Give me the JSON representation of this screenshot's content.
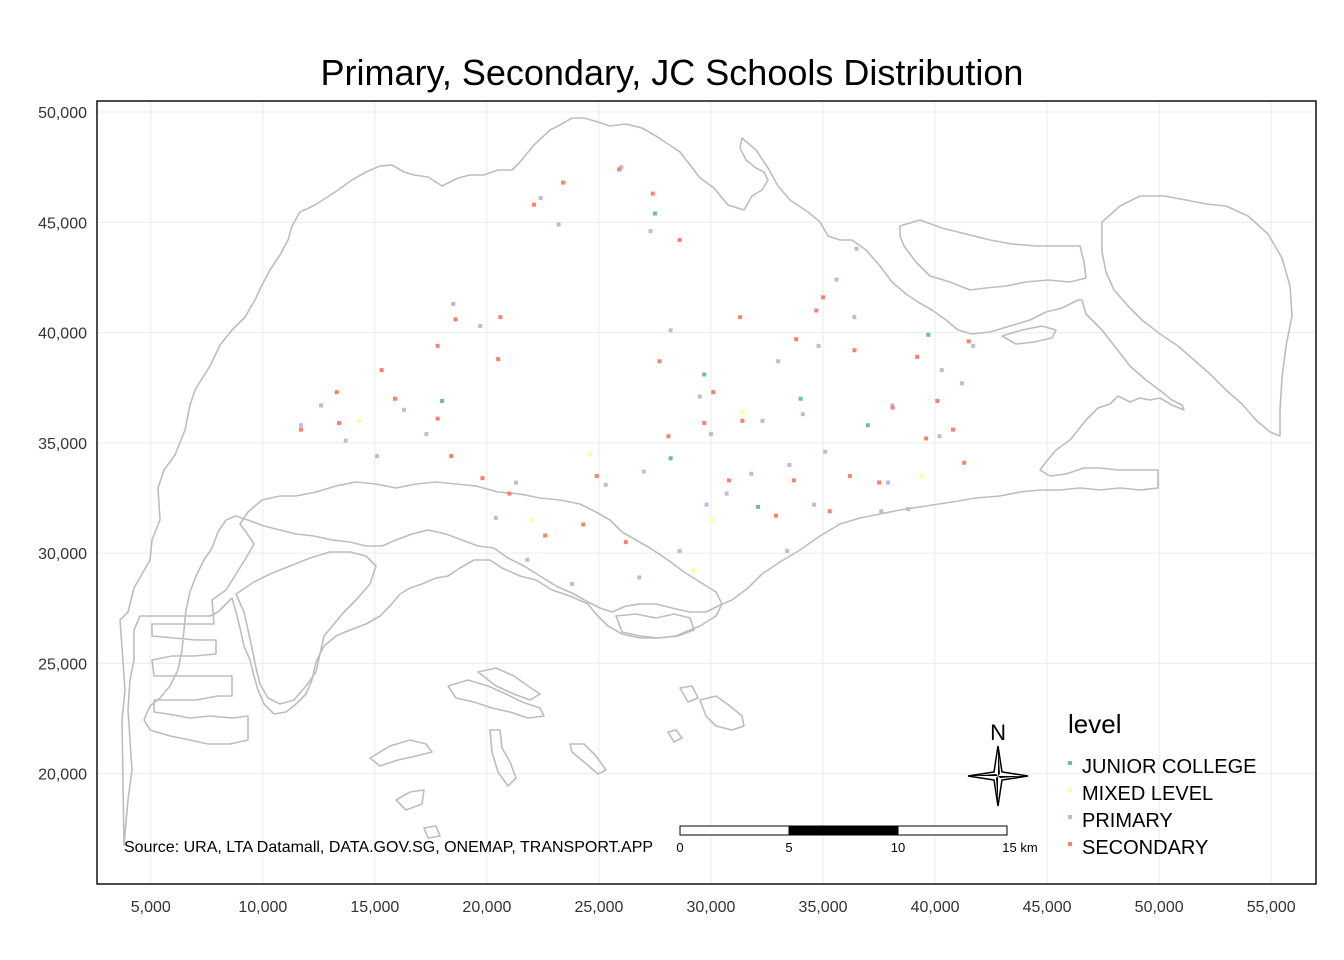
{
  "title": "Primary, Secondary, JC Schools Distribution",
  "source_note": "Source: URA, LTA Datamall, DATA.GOV.SG, ONEMAP, TRANSPORT.APP",
  "north_arrow_label": "N",
  "scale_bar": {
    "labels": [
      "0",
      "5",
      "10",
      "15 km"
    ]
  },
  "legend": {
    "title": "level",
    "items": [
      {
        "label": "JUNIOR COLLEGE",
        "color": "#66c2a5"
      },
      {
        "label": "MIXED LEVEL",
        "color": "#ffff99"
      },
      {
        "label": "PRIMARY",
        "color": "#bebada"
      },
      {
        "label": "SECONDARY",
        "color": "#fb8072"
      }
    ]
  },
  "colors": {
    "outline": "#bdbdbd",
    "grid": "#ebebeb",
    "frame": "#000000"
  },
  "chart_data": {
    "type": "scatter",
    "title": "Primary, Secondary, JC Schools Distribution",
    "xlim": [
      2600,
      57000
    ],
    "ylim": [
      15000,
      50500
    ],
    "x_ticks": [
      5000,
      10000,
      15000,
      20000,
      25000,
      30000,
      35000,
      40000,
      45000,
      50000,
      55000
    ],
    "x_tick_labels": [
      "5,000",
      "10,000",
      "15,000",
      "20,000",
      "25,000",
      "30,000",
      "35,000",
      "40,000",
      "45,000",
      "50,000",
      "55,000"
    ],
    "y_ticks": [
      20000,
      25000,
      30000,
      35000,
      40000,
      45000,
      50000
    ],
    "y_tick_labels": [
      "20,000",
      "25,000",
      "30,000",
      "35,000",
      "40,000",
      "45,000",
      "50,000"
    ],
    "grid": true,
    "legend_position": "bottom-right",
    "series": [
      {
        "name": "JUNIOR COLLEGE",
        "x": [
          18000,
          27500,
          28200,
          29700,
          32100,
          34000,
          37000,
          39700
        ],
        "y": [
          36900,
          45400,
          34300,
          38100,
          32100,
          37000,
          35800,
          39900
        ]
      },
      {
        "name": "MIXED LEVEL",
        "x": [
          14300,
          22000,
          24600,
          29200,
          30000,
          31400,
          39400
        ],
        "y": [
          36000,
          31500,
          34500,
          29200,
          31500,
          36400,
          33500
        ]
      },
      {
        "name": "PRIMARY",
        "x": [
          11700,
          12600,
          13700,
          15100,
          16300,
          17300,
          18500,
          19700,
          21300,
          23200,
          22400,
          26000,
          27300,
          28200,
          29500,
          30000,
          31800,
          33000,
          34100,
          35600,
          36400,
          33500,
          34600,
          37600,
          40300,
          41700,
          25300,
          26800,
          28600,
          30700,
          32300,
          34800,
          36500,
          38100,
          38800,
          40200,
          41200,
          20400,
          21800,
          23800,
          27000,
          29800,
          33400,
          35100,
          37900
        ],
        "y": [
          35800,
          36700,
          35100,
          34400,
          36500,
          35400,
          41300,
          40300,
          33200,
          44900,
          46100,
          47500,
          44600,
          40100,
          37100,
          35400,
          33600,
          38700,
          36300,
          42400,
          40700,
          34000,
          32200,
          31900,
          38300,
          39400,
          33100,
          28900,
          30100,
          32700,
          36000,
          39400,
          43800,
          36700,
          32000,
          35300,
          37700,
          31600,
          29700,
          28600,
          33700,
          32200,
          30100,
          34600,
          33200
        ]
      },
      {
        "name": "SECONDARY",
        "x": [
          11700,
          13300,
          15900,
          17800,
          18600,
          20600,
          22100,
          23400,
          25900,
          27400,
          28600,
          27700,
          30100,
          31400,
          33700,
          35300,
          36200,
          34700,
          38100,
          40100,
          41500,
          39600,
          41300,
          36400,
          33800,
          31300,
          29700,
          26200,
          24300,
          21000,
          19800,
          17800,
          15300,
          13400,
          18400,
          20500,
          22600,
          24900,
          28100,
          30800,
          32900,
          35000,
          37500,
          39200,
          40800
        ],
        "y": [
          35600,
          37300,
          37000,
          36100,
          40600,
          40700,
          45800,
          46800,
          47400,
          46300,
          44200,
          38700,
          37300,
          36000,
          33300,
          31900,
          33500,
          41000,
          36600,
          36900,
          39600,
          35200,
          34100,
          39200,
          39700,
          40700,
          35900,
          30500,
          31300,
          32700,
          33400,
          39400,
          38300,
          35900,
          34400,
          38800,
          30800,
          33500,
          35300,
          33300,
          31700,
          41600,
          33200,
          38900,
          35600
        ]
      }
    ]
  }
}
